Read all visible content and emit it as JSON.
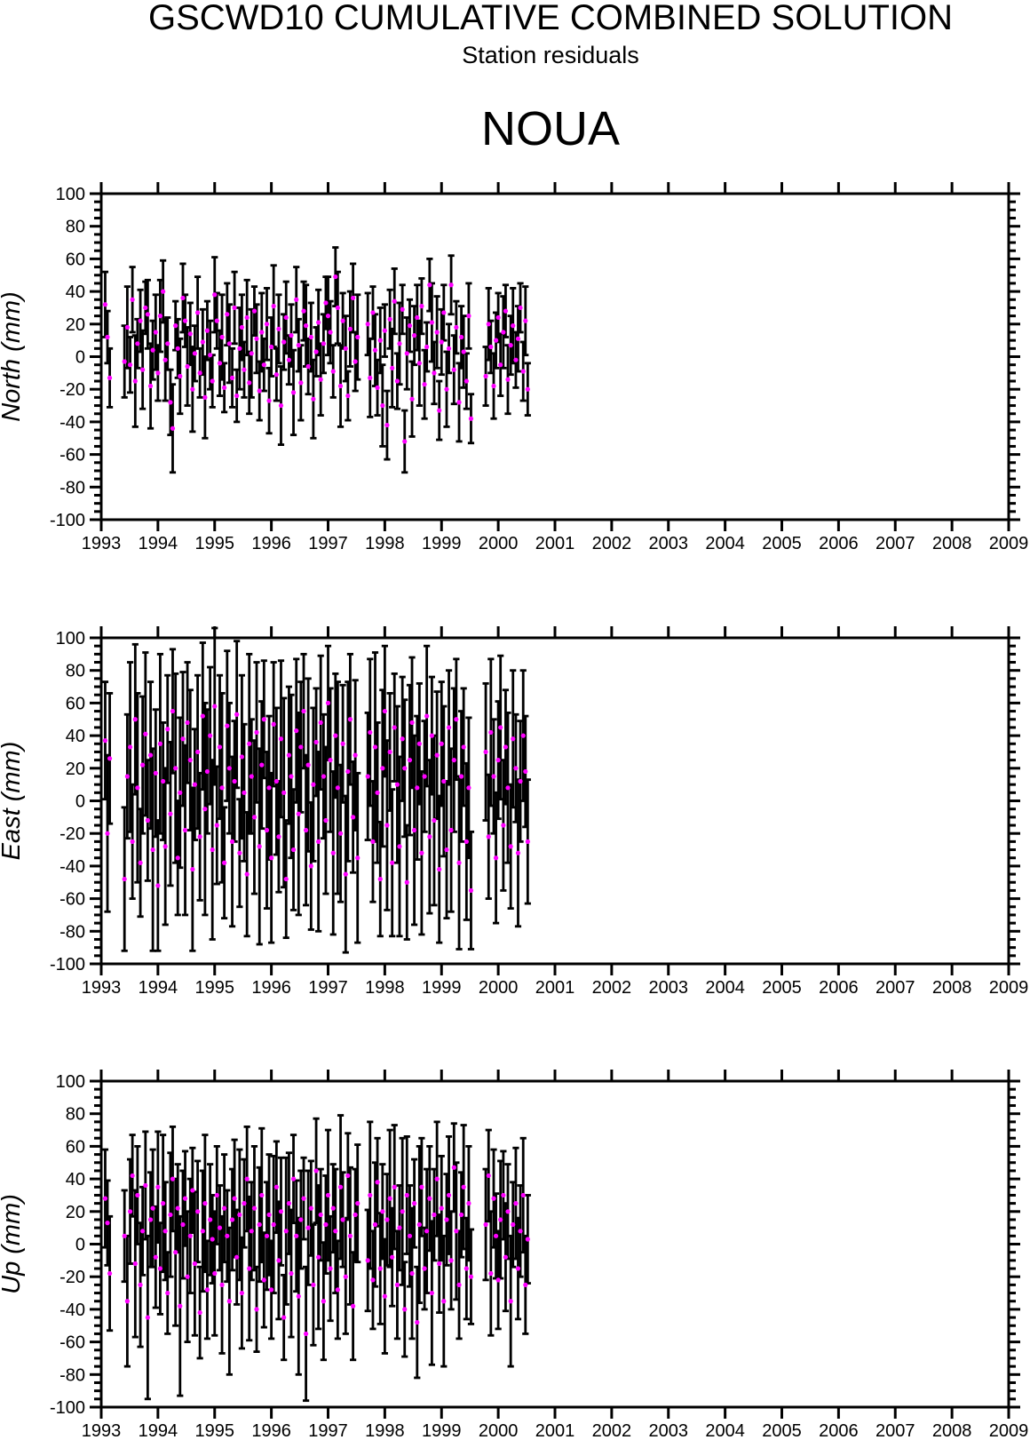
{
  "header": {
    "title": "GSCWD10 CUMULATIVE COMBINED SOLUTION",
    "subtitle": "Station residuals",
    "station": "NOUA"
  },
  "chart_data": {
    "type": "scatter",
    "title": "GSCWD10 CUMULATIVE COMBINED SOLUTION",
    "subtitle": "Station residuals",
    "station": "NOUA",
    "marker": {
      "shape": "circle",
      "color": "#ff00ff"
    },
    "errorbar_color": "#000000",
    "axes": {
      "x": {
        "min": 1993,
        "max": 2009,
        "tick_labels": [
          "1993",
          "1994",
          "1995",
          "1996",
          "1997",
          "1998",
          "1999",
          "2000",
          "2001",
          "2002",
          "2003",
          "2004",
          "2005",
          "2006",
          "2007",
          "2008",
          "2009"
        ]
      },
      "y": {
        "min": -100,
        "max": 100,
        "major": 20,
        "minor": 5,
        "tick_labels": [
          "100",
          "80",
          "60",
          "40",
          "20",
          "0",
          "-20",
          "-40",
          "-60",
          "-80",
          "-100"
        ]
      }
    },
    "t": [
      1993.07,
      1993.11,
      1993.15,
      1993.41,
      1993.46,
      1993.51,
      1993.55,
      1993.6,
      1993.64,
      1993.69,
      1993.73,
      1993.78,
      1993.82,
      1993.87,
      1993.91,
      1993.96,
      1994.0,
      1994.04,
      1994.09,
      1994.13,
      1994.17,
      1994.22,
      1994.26,
      1994.31,
      1994.35,
      1994.39,
      1994.44,
      1994.48,
      1994.52,
      1994.57,
      1994.61,
      1994.65,
      1994.7,
      1994.74,
      1994.79,
      1994.83,
      1994.87,
      1994.92,
      1994.96,
      1995.0,
      1995.04,
      1995.09,
      1995.13,
      1995.17,
      1995.22,
      1995.26,
      1995.31,
      1995.35,
      1995.39,
      1995.44,
      1995.48,
      1995.52,
      1995.57,
      1995.61,
      1995.65,
      1995.7,
      1995.74,
      1995.79,
      1995.83,
      1995.87,
      1995.92,
      1995.96,
      1996.0,
      1996.04,
      1996.09,
      1996.13,
      1996.17,
      1996.22,
      1996.26,
      1996.31,
      1996.35,
      1996.39,
      1996.44,
      1996.48,
      1996.52,
      1996.57,
      1996.61,
      1996.65,
      1996.7,
      1996.74,
      1996.79,
      1996.83,
      1996.87,
      1996.92,
      1996.96,
      1997.0,
      1997.04,
      1997.09,
      1997.13,
      1997.17,
      1997.22,
      1997.26,
      1997.31,
      1997.35,
      1997.39,
      1997.44,
      1997.48,
      1997.52,
      1997.7,
      1997.74,
      1997.79,
      1997.83,
      1997.87,
      1997.92,
      1997.96,
      1998.0,
      1998.04,
      1998.09,
      1998.13,
      1998.17,
      1998.22,
      1998.26,
      1998.31,
      1998.35,
      1998.39,
      1998.44,
      1998.48,
      1998.52,
      1998.57,
      1998.61,
      1998.65,
      1998.7,
      1998.74,
      1998.79,
      1998.83,
      1998.87,
      1998.92,
      1998.96,
      1999.0,
      1999.04,
      1999.09,
      1999.13,
      1999.17,
      1999.22,
      1999.26,
      1999.31,
      1999.35,
      1999.39,
      1999.44,
      1999.48,
      1999.52,
      1999.78,
      1999.83,
      1999.87,
      1999.92,
      1999.96,
      2000.0,
      2000.04,
      2000.09,
      2000.13,
      2000.17,
      2000.22,
      2000.26,
      2000.31,
      2000.35,
      2000.39,
      2000.44,
      2000.48,
      2000.52
    ],
    "panels": [
      {
        "id": "north",
        "ylabel": "North (mm)",
        "values": [
          32,
          12,
          -13,
          -3,
          18,
          -5,
          35,
          -15,
          8,
          22,
          -8,
          30,
          26,
          -18,
          4,
          15,
          -10,
          25,
          40,
          -2,
          8,
          -28,
          -44,
          19,
          5,
          -12,
          36,
          22,
          -6,
          14,
          -20,
          2,
          27,
          -10,
          9,
          -25,
          16,
          1,
          -15,
          38,
          22,
          -4,
          12,
          -19,
          26,
          8,
          -13,
          30,
          -24,
          5,
          18,
          -8,
          24,
          -16,
          2,
          28,
          11,
          -21,
          15,
          -5,
          20,
          -27,
          6,
          31,
          -11,
          17,
          -30,
          9,
          24,
          -2,
          13,
          -22,
          35,
          7,
          -16,
          28,
          19,
          -6,
          12,
          -26,
          3,
          21,
          -14,
          8,
          33,
          25,
          15,
          -9,
          49,
          30,
          -18,
          22,
          5,
          -24,
          17,
          36,
          -3,
          12,
          20,
          -13,
          27,
          4,
          -19,
          10,
          -30,
          16,
          -42,
          23,
          -7,
          34,
          -15,
          8,
          29,
          -52,
          2,
          19,
          -26,
          13,
          24,
          -4,
          31,
          -17,
          6,
          44,
          21,
          -10,
          15,
          -33,
          9,
          27,
          -20,
          5,
          44,
          -8,
          18,
          -28,
          12,
          3,
          -15,
          25,
          -38,
          -12,
          20,
          6,
          -18,
          10,
          24,
          -5,
          15,
          28,
          -14,
          7,
          19,
          -2,
          11,
          30,
          -9,
          22,
          -20
        ],
        "errors": [
          20,
          16,
          18,
          22,
          25,
          17,
          20,
          28,
          15,
          19,
          24,
          16,
          21,
          26,
          18,
          23,
          17,
          22,
          19,
          25,
          16,
          20,
          27,
          15,
          18,
          23,
          21,
          16,
          24,
          19,
          26,
          17,
          22,
          15,
          20,
          25,
          18,
          21,
          16,
          23,
          17,
          20,
          26,
          15,
          19,
          24,
          18,
          22,
          16,
          25,
          20,
          17,
          23,
          19,
          27,
          15,
          21,
          18,
          24,
          16,
          22,
          20,
          18,
          25,
          16,
          21,
          24,
          17,
          22,
          15,
          19,
          26,
          20,
          16,
          23,
          18,
          25,
          17,
          21,
          24,
          15,
          20,
          22,
          18,
          16,
          24,
          19,
          16,
          18,
          22,
          25,
          17,
          20,
          15,
          23,
          21,
          18,
          26,
          19,
          24,
          16,
          22,
          17,
          20,
          25,
          16,
          21,
          18,
          24,
          20,
          17,
          25,
          15,
          19,
          22,
          16,
          23,
          18,
          20,
          26,
          17,
          21,
          15,
          16,
          24,
          19,
          22,
          18,
          20,
          17,
          23,
          15,
          18,
          21,
          16,
          24,
          19,
          22,
          17,
          20,
          15,
          18,
          22,
          16,
          20,
          17,
          15,
          19,
          22,
          16,
          21,
          18,
          23,
          17,
          20,
          15,
          18,
          21,
          16
        ]
      },
      {
        "id": "east",
        "ylabel": "East (mm)",
        "values": [
          37,
          -20,
          26,
          -48,
          15,
          33,
          -25,
          50,
          8,
          -38,
          22,
          41,
          -12,
          28,
          -30,
          17,
          -52,
          35,
          12,
          -28,
          44,
          -8,
          55,
          20,
          -35,
          5,
          38,
          -18,
          48,
          25,
          -42,
          10,
          30,
          -22,
          52,
          -5,
          18,
          40,
          -30,
          58,
          -15,
          33,
          8,
          -38,
          46,
          20,
          -25,
          12,
          53,
          -32,
          27,
          5,
          -45,
          35,
          15,
          -10,
          42,
          -28,
          22,
          50,
          -18,
          8,
          -35,
          47,
          12,
          -22,
          38,
          5,
          -48,
          28,
          15,
          -30,
          43,
          -8,
          33,
          55,
          -18,
          22,
          -40,
          10,
          36,
          -25,
          48,
          15,
          -12,
          60,
          25,
          -32,
          40,
          8,
          -20,
          35,
          -45,
          18,
          50,
          -10,
          28,
          -35,
          15,
          42,
          -25,
          33,
          5,
          -48,
          20,
          55,
          -15,
          30,
          -38,
          45,
          10,
          -28,
          38,
          20,
          -50,
          25,
          48,
          -18,
          8,
          35,
          -32,
          15,
          52,
          -22,
          40,
          -12,
          28,
          -42,
          35,
          12,
          -30,
          45,
          -18,
          25,
          50,
          -38,
          15,
          33,
          -25,
          8,
          -55,
          30,
          -22,
          42,
          15,
          -35,
          25,
          45,
          -15,
          33,
          8,
          -28,
          38,
          20,
          -32,
          12,
          40,
          18,
          -25
        ],
        "errors": [
          36,
          48,
          40,
          44,
          38,
          52,
          35,
          46,
          58,
          33,
          42,
          50,
          37,
          45,
          62,
          39,
          40,
          55,
          36,
          48,
          33,
          44,
          38,
          58,
          35,
          46,
          41,
          52,
          37,
          43,
          50,
          34,
          47,
          39,
          45,
          65,
          38,
          42,
          55,
          48,
          36,
          44,
          58,
          34,
          46,
          40,
          52,
          37,
          45,
          33,
          50,
          42,
          38,
          55,
          35,
          47,
          43,
          60,
          39,
          36,
          48,
          44,
          52,
          38,
          45,
          34,
          48,
          58,
          36,
          42,
          50,
          37,
          44,
          62,
          40,
          35,
          46,
          53,
          39,
          47,
          33,
          55,
          41,
          38,
          45,
          35,
          44,
          50,
          38,
          65,
          42,
          36,
          48,
          55,
          40,
          34,
          46,
          52,
          39,
          45,
          37,
          58,
          43,
          35,
          48,
          40,
          52,
          36,
          45,
          33,
          48,
          55,
          38,
          42,
          35,
          46,
          40,
          58,
          44,
          37,
          50,
          34,
          43,
          47,
          36,
          52,
          39,
          45,
          38,
          46,
          42,
          35,
          50,
          44,
          37,
          53,
          40,
          36,
          48,
          43,
          36,
          42,
          38,
          45,
          35,
          40,
          36,
          44,
          40,
          35,
          46,
          38,
          42,
          33,
          45,
          37,
          40,
          34,
          38
        ]
      },
      {
        "id": "up",
        "ylabel": "Up (mm)",
        "values": [
          28,
          13,
          -18,
          5,
          -35,
          20,
          42,
          -12,
          30,
          -25,
          8,
          36,
          -45,
          15,
          22,
          -8,
          35,
          -15,
          25,
          8,
          -30,
          18,
          40,
          -5,
          22,
          -38,
          12,
          28,
          -20,
          5,
          33,
          -12,
          20,
          -42,
          8,
          25,
          -28,
          15,
          3,
          -18,
          30,
          10,
          -25,
          22,
          5,
          -35,
          15,
          28,
          -8,
          18,
          -30,
          25,
          40,
          -15,
          8,
          22,
          -40,
          12,
          30,
          -22,
          5,
          18,
          -28,
          12,
          35,
          -10,
          20,
          -45,
          8,
          25,
          -18,
          40,
          5,
          -32,
          15,
          28,
          -55,
          10,
          22,
          -25,
          45,
          -8,
          18,
          -35,
          12,
          30,
          -15,
          22,
          8,
          -28,
          35,
          15,
          -20,
          42,
          5,
          -38,
          18,
          25,
          -10,
          30,
          -22,
          12,
          38,
          -15,
          20,
          -32,
          15,
          28,
          -8,
          35,
          -25,
          10,
          20,
          -40,
          30,
          5,
          -18,
          25,
          -48,
          12,
          35,
          -15,
          8,
          28,
          -30,
          18,
          40,
          -12,
          22,
          -35,
          15,
          30,
          -10,
          47,
          8,
          -25,
          18,
          35,
          -15,
          25,
          -20,
          12,
          42,
          -18,
          28,
          5,
          -22,
          15,
          30,
          -8,
          20,
          -35,
          12,
          25,
          -15,
          8,
          30,
          -25,
          3
        ],
        "errors": [
          30,
          26,
          35,
          28,
          40,
          32,
          25,
          45,
          30,
          38,
          27,
          33,
          50,
          29,
          36,
          31,
          34,
          28,
          42,
          30,
          25,
          38,
          32,
          45,
          27,
          55,
          33,
          29,
          40,
          35,
          26,
          44,
          31,
          28,
          37,
          42,
          30,
          34,
          27,
          38,
          30,
          26,
          42,
          33,
          28,
          45,
          31,
          36,
          29,
          40,
          34,
          27,
          32,
          44,
          30,
          38,
          26,
          35,
          41,
          29,
          33,
          37,
          30,
          42,
          28,
          36,
          33,
          26,
          45,
          31,
          39,
          27,
          34,
          48,
          30,
          25,
          41,
          35,
          29,
          37,
          32,
          44,
          28,
          36,
          30,
          40,
          32,
          27,
          38,
          30,
          44,
          29,
          35,
          26,
          42,
          33,
          28,
          36,
          31,
          45,
          30,
          38,
          27,
          34,
          29,
          35,
          28,
          42,
          30,
          38,
          33,
          26,
          45,
          29,
          36,
          31,
          40,
          27,
          34,
          48,
          30,
          25,
          38,
          32,
          44,
          28,
          35,
          30,
          32,
          40,
          28,
          36,
          30,
          27,
          42,
          33,
          26,
          38,
          31,
          35,
          29,
          34,
          28,
          38,
          30,
          26,
          30,
          36,
          27,
          33,
          29,
          40,
          26,
          34,
          31,
          28,
          35,
          30,
          27
        ]
      }
    ]
  }
}
